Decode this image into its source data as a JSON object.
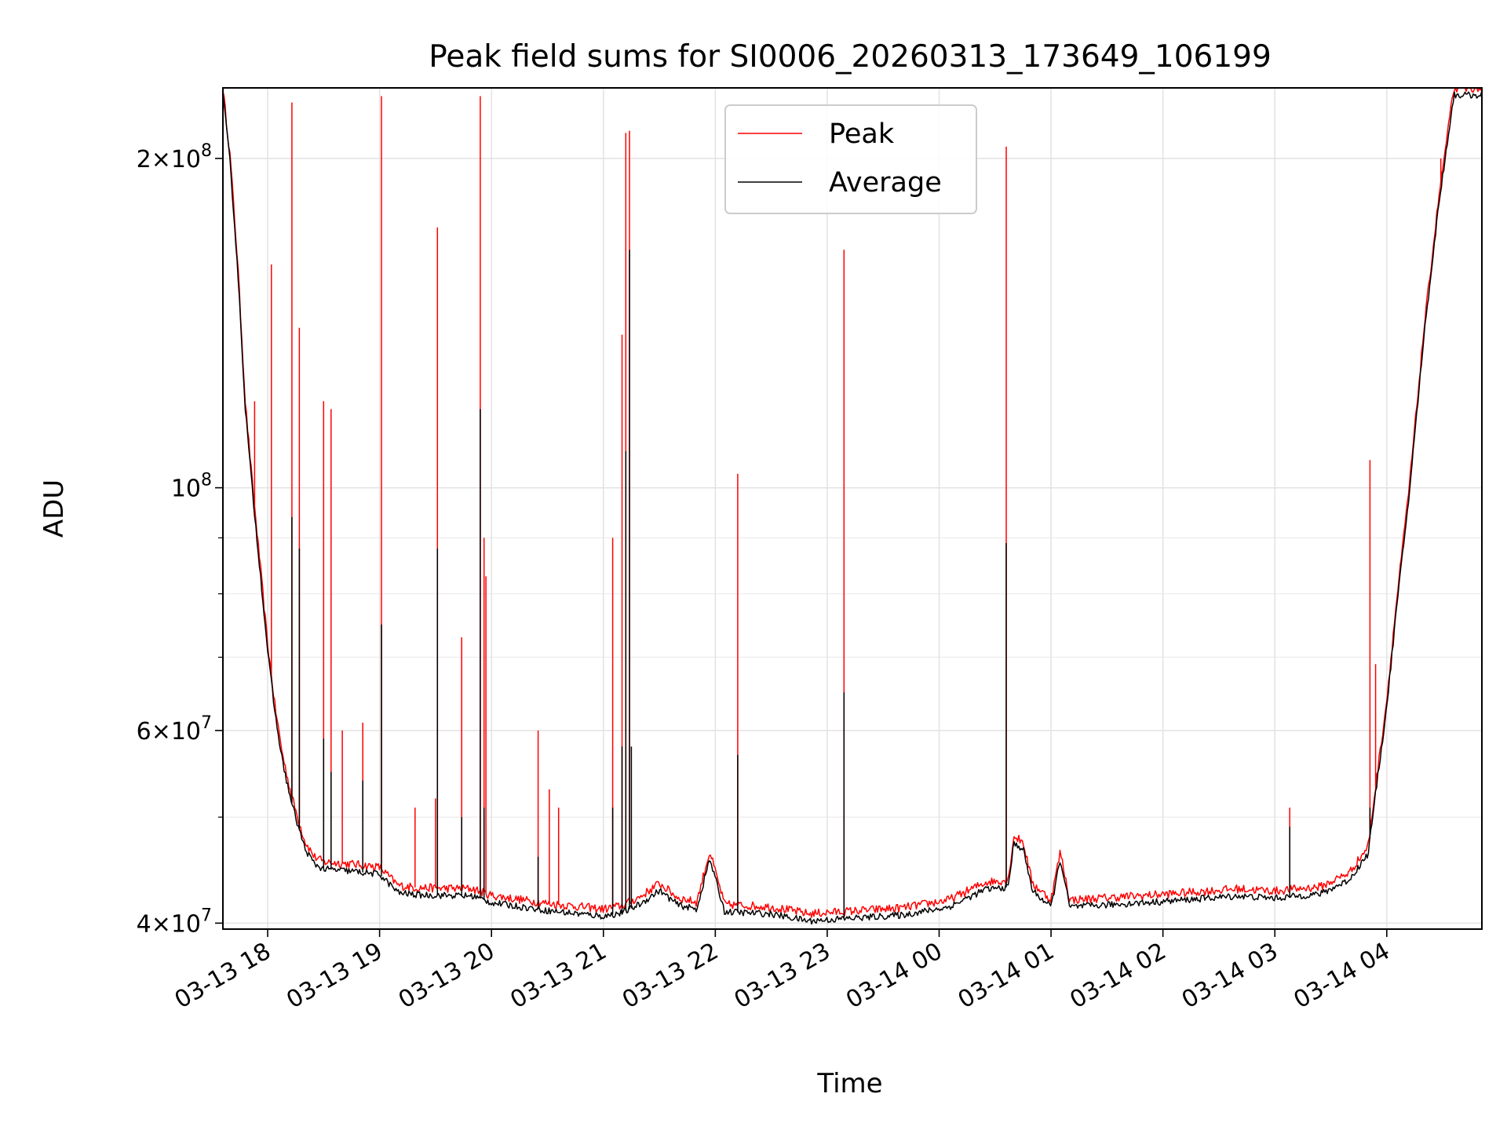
{
  "chart_data": {
    "type": "line",
    "title": "Peak field sums for SI0006_20260313_173649_106199",
    "xlabel": "Time",
    "ylabel": "ADU",
    "xlim": [
      "2026-03-13 17:36",
      "2026-03-14 04:51"
    ],
    "ylim": [
      39500000,
      232000000
    ],
    "yscale": "log",
    "grid": true,
    "legend_position": "top-center",
    "x_ticks": [
      {
        "label": "03-13 18",
        "time": "2026-03-13 18:00"
      },
      {
        "label": "03-13 19",
        "time": "2026-03-13 19:00"
      },
      {
        "label": "03-13 20",
        "time": "2026-03-13 20:00"
      },
      {
        "label": "03-13 21",
        "time": "2026-03-13 21:00"
      },
      {
        "label": "03-13 22",
        "time": "2026-03-13 22:00"
      },
      {
        "label": "03-13 23",
        "time": "2026-03-13 23:00"
      },
      {
        "label": "03-14 00",
        "time": "2026-03-14 00:00"
      },
      {
        "label": "03-14 01",
        "time": "2026-03-14 01:00"
      },
      {
        "label": "03-14 02",
        "time": "2026-03-14 02:00"
      },
      {
        "label": "03-14 03",
        "time": "2026-03-14 03:00"
      },
      {
        "label": "03-14 04",
        "time": "2026-03-14 04:00"
      }
    ],
    "y_ticks": [
      {
        "base": "4",
        "exp": "7",
        "value": 40000000
      },
      {
        "base": "6",
        "exp": "7",
        "value": 60000000
      },
      {
        "base": "",
        "exp": "8",
        "value": 100000000
      },
      {
        "base": "2",
        "exp": "8",
        "value": 200000000
      }
    ],
    "y_minor_ticks": [
      50000000,
      70000000,
      80000000,
      90000000
    ],
    "series": [
      {
        "name": "Peak",
        "color": "#ff0000",
        "baseline": [
          [
            "2026-03-13 17:36",
            232000000
          ],
          [
            "2026-03-13 17:40",
            200000000
          ],
          [
            "2026-03-13 17:44",
            160000000
          ],
          [
            "2026-03-13 17:48",
            120000000
          ],
          [
            "2026-03-13 17:52",
            100000000
          ],
          [
            "2026-03-13 17:56",
            85000000
          ],
          [
            "2026-03-13 18:00",
            72000000
          ],
          [
            "2026-03-13 18:04",
            63000000
          ],
          [
            "2026-03-13 18:08",
            57000000
          ],
          [
            "2026-03-13 18:12",
            53000000
          ],
          [
            "2026-03-13 18:16",
            50000000
          ],
          [
            "2026-03-13 18:20",
            47500000
          ],
          [
            "2026-03-13 18:25",
            46000000
          ],
          [
            "2026-03-13 18:30",
            45500000
          ],
          [
            "2026-03-13 18:45",
            45300000
          ],
          [
            "2026-03-13 19:00",
            45000000
          ],
          [
            "2026-03-13 19:10",
            43300000
          ],
          [
            "2026-03-13 19:20",
            43100000
          ],
          [
            "2026-03-13 19:50",
            43000000
          ],
          [
            "2026-03-13 20:00",
            42400000
          ],
          [
            "2026-03-13 20:30",
            41700000
          ],
          [
            "2026-03-13 21:00",
            41200000
          ],
          [
            "2026-03-13 21:10",
            41500000
          ],
          [
            "2026-03-13 21:20",
            42300000
          ],
          [
            "2026-03-13 21:30",
            43500000
          ],
          [
            "2026-03-13 21:40",
            42200000
          ],
          [
            "2026-03-13 21:50",
            41800000
          ],
          [
            "2026-03-13 21:57",
            46500000
          ],
          [
            "2026-03-13 22:05",
            41600000
          ],
          [
            "2026-03-13 22:30",
            41400000
          ],
          [
            "2026-03-13 22:50",
            40800000
          ],
          [
            "2026-03-13 23:10",
            41000000
          ],
          [
            "2026-03-13 23:40",
            41300000
          ],
          [
            "2026-03-14 00:05",
            42000000
          ],
          [
            "2026-03-14 00:25",
            43600000
          ],
          [
            "2026-03-14 00:37",
            43800000
          ],
          [
            "2026-03-14 00:40",
            48000000
          ],
          [
            "2026-03-14 00:45",
            47500000
          ],
          [
            "2026-03-14 00:50",
            43500000
          ],
          [
            "2026-03-14 01:00",
            42000000
          ],
          [
            "2026-03-14 01:05",
            46500000
          ],
          [
            "2026-03-14 01:10",
            42000000
          ],
          [
            "2026-03-14 01:30",
            42200000
          ],
          [
            "2026-03-14 02:00",
            42500000
          ],
          [
            "2026-03-14 02:40",
            43000000
          ],
          [
            "2026-03-14 03:00",
            42800000
          ],
          [
            "2026-03-14 03:25",
            43200000
          ],
          [
            "2026-03-14 03:40",
            44500000
          ],
          [
            "2026-03-14 03:50",
            47000000
          ],
          [
            "2026-03-14 03:55",
            55000000
          ],
          [
            "2026-03-14 04:00",
            64000000
          ],
          [
            "2026-03-14 04:05",
            78000000
          ],
          [
            "2026-03-14 04:12",
            100000000
          ],
          [
            "2026-03-14 04:20",
            140000000
          ],
          [
            "2026-03-14 04:28",
            185000000
          ],
          [
            "2026-03-14 04:36",
            232000000
          ],
          [
            "2026-03-14 04:51",
            232000000
          ]
        ],
        "spikes": [
          [
            "2026-03-13 17:53",
            120000000
          ],
          [
            "2026-03-13 18:02",
            160000000
          ],
          [
            "2026-03-13 18:13",
            225000000
          ],
          [
            "2026-03-13 18:17",
            140000000
          ],
          [
            "2026-03-13 18:30",
            120000000
          ],
          [
            "2026-03-13 18:34",
            118000000
          ],
          [
            "2026-03-13 18:40",
            60000000
          ],
          [
            "2026-03-13 18:51",
            61000000
          ],
          [
            "2026-03-13 19:01",
            228000000
          ],
          [
            "2026-03-13 19:19",
            51000000
          ],
          [
            "2026-03-13 19:30",
            52000000
          ],
          [
            "2026-03-13 19:31",
            173000000
          ],
          [
            "2026-03-13 19:44",
            73000000
          ],
          [
            "2026-03-13 19:54",
            228000000
          ],
          [
            "2026-03-13 19:56",
            90000000
          ],
          [
            "2026-03-13 19:57",
            83000000
          ],
          [
            "2026-03-13 20:25",
            60000000
          ],
          [
            "2026-03-13 20:31",
            53000000
          ],
          [
            "2026-03-13 20:36",
            51000000
          ],
          [
            "2026-03-13 21:05",
            90000000
          ],
          [
            "2026-03-13 21:10",
            138000000
          ],
          [
            "2026-03-13 21:12",
            211000000
          ],
          [
            "2026-03-13 21:14",
            212000000
          ],
          [
            "2026-03-13 22:12",
            103000000
          ],
          [
            "2026-03-13 23:09",
            165000000
          ],
          [
            "2026-03-14 00:36",
            205000000
          ],
          [
            "2026-03-14 03:08",
            51000000
          ],
          [
            "2026-03-14 03:51",
            106000000
          ],
          [
            "2026-03-14 03:54",
            69000000
          ],
          [
            "2026-03-14 04:29",
            200000000
          ]
        ]
      },
      {
        "name": "Average",
        "color": "#000000",
        "spikes": [
          [
            "2026-03-13 18:13",
            94000000
          ],
          [
            "2026-03-13 18:17",
            88000000
          ],
          [
            "2026-03-13 18:30",
            59000000
          ],
          [
            "2026-03-13 18:34",
            55000000
          ],
          [
            "2026-03-13 18:51",
            54000000
          ],
          [
            "2026-03-13 19:01",
            75000000
          ],
          [
            "2026-03-13 19:31",
            88000000
          ],
          [
            "2026-03-13 19:44",
            50000000
          ],
          [
            "2026-03-13 19:54",
            118000000
          ],
          [
            "2026-03-13 19:56",
            51000000
          ],
          [
            "2026-03-13 20:25",
            46000000
          ],
          [
            "2026-03-13 21:05",
            51000000
          ],
          [
            "2026-03-13 21:10",
            58000000
          ],
          [
            "2026-03-13 21:12",
            108000000
          ],
          [
            "2026-03-13 21:14",
            165000000
          ],
          [
            "2026-03-13 21:15",
            58000000
          ],
          [
            "2026-03-13 22:12",
            57000000
          ],
          [
            "2026-03-13 23:09",
            65000000
          ],
          [
            "2026-03-14 00:36",
            89000000
          ],
          [
            "2026-03-14 03:08",
            49000000
          ],
          [
            "2026-03-14 03:51",
            51000000
          ]
        ]
      }
    ]
  }
}
